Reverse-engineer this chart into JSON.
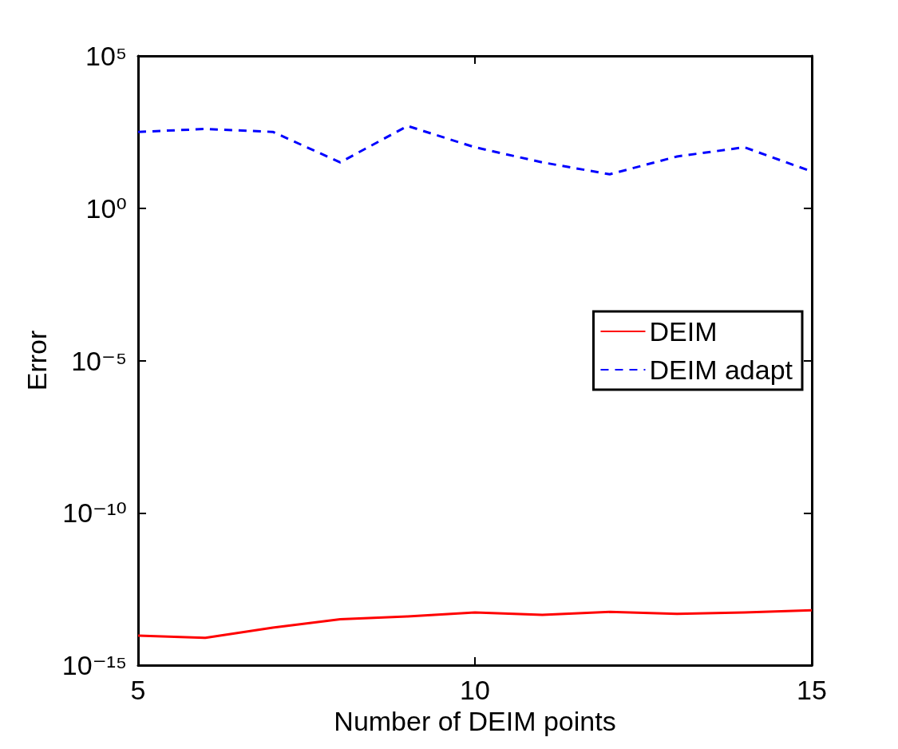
{
  "chart_data": {
    "type": "line",
    "xlabel": "Number of DEIM points",
    "ylabel": "Error",
    "x": [
      5,
      6,
      7,
      8,
      9,
      10,
      11,
      12,
      13,
      14,
      15
    ],
    "series": [
      {
        "name": "DEIM",
        "color": "#ff0000",
        "line_style": "solid",
        "values": [
          9.3e-15,
          7.9e-15,
          1.7e-14,
          3.2e-14,
          4e-14,
          5.4e-14,
          4.5e-14,
          5.6e-14,
          4.8e-14,
          5.4e-14,
          6.3e-14
        ]
      },
      {
        "name": "DEIM adapt",
        "color": "#0000ff",
        "line_style": "dashed",
        "values": [
          320,
          400,
          320,
          32,
          500,
          100,
          32,
          13,
          50,
          100,
          16
        ]
      }
    ],
    "log": "y",
    "xlim": [
      5,
      15
    ],
    "xticks": [
      5,
      10,
      15
    ],
    "ylim": [
      1e-15,
      100000
    ],
    "yticks": [
      {
        "value": 1e-15,
        "label": "10⁻¹⁵"
      },
      {
        "value": 1e-10,
        "label": "10⁻¹⁰"
      },
      {
        "value": 1e-05,
        "label": "10⁻⁵"
      },
      {
        "value": 1,
        "label": "10⁰"
      },
      {
        "value": 100000,
        "label": "10⁵"
      }
    ],
    "grid": false,
    "legend": "right",
    "marker": "none"
  }
}
